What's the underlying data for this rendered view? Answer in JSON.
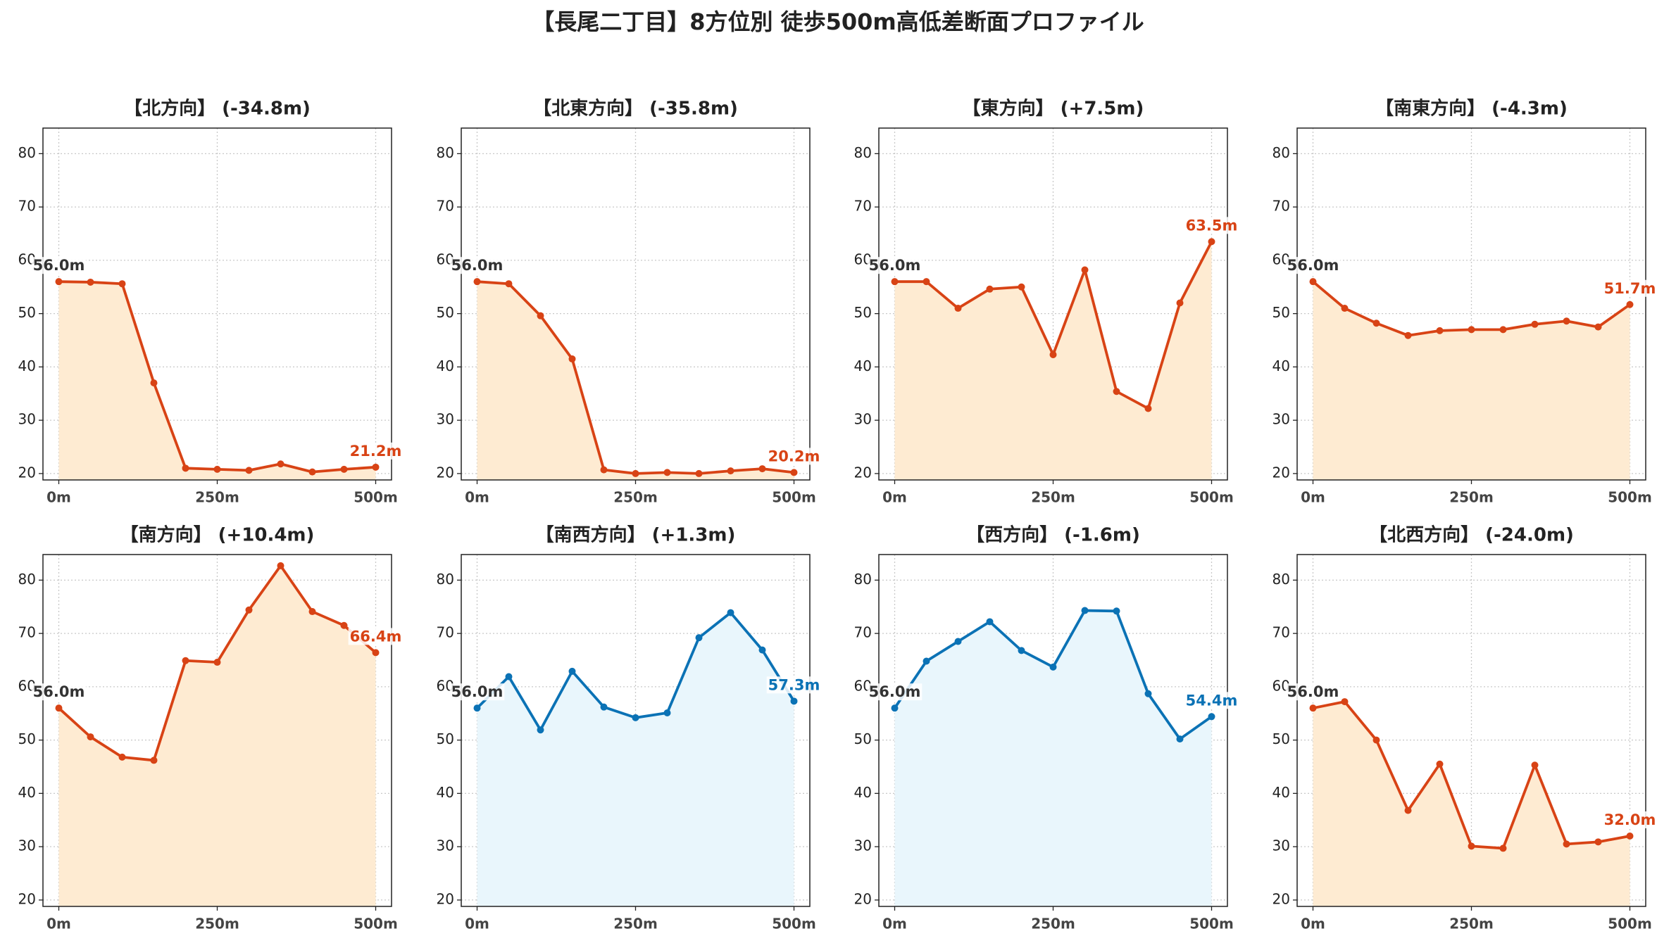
{
  "title": "【長尾二丁目】8方位別 徒歩500m高低差断面プロファイル",
  "chart_data": [
    {
      "type": "line",
      "title": "【北方向】 (-34.8m)",
      "x": [
        0,
        50,
        100,
        150,
        200,
        250,
        300,
        350,
        400,
        450,
        500
      ],
      "values": [
        56.0,
        55.9,
        55.6,
        37.0,
        21.0,
        20.8,
        20.6,
        21.8,
        20.3,
        20.8,
        21.2
      ],
      "value_labels": [
        "56.0m",
        null,
        null,
        null,
        null,
        null,
        null,
        null,
        null,
        null,
        "21.2m"
      ],
      "color": "#d84315",
      "fill_color": "#feebd2",
      "xlim": [
        -25,
        525
      ],
      "ylim": [
        18.8,
        84.8
      ],
      "xticks": [
        {
          "value": 0,
          "label": "0m"
        },
        {
          "value": 250,
          "label": "250m"
        },
        {
          "value": 500,
          "label": "500m"
        }
      ],
      "yticks": [
        20,
        30,
        40,
        50,
        60,
        70,
        80
      ],
      "grid": true
    },
    {
      "type": "line",
      "title": "【北東方向】 (-35.8m)",
      "x": [
        0,
        50,
        100,
        150,
        200,
        250,
        300,
        350,
        400,
        450,
        500
      ],
      "values": [
        56.0,
        55.6,
        49.6,
        41.5,
        20.7,
        20.0,
        20.2,
        20.0,
        20.5,
        20.9,
        20.2
      ],
      "value_labels": [
        "56.0m",
        null,
        null,
        null,
        null,
        null,
        null,
        null,
        null,
        null,
        "20.2m"
      ],
      "color": "#d84315",
      "fill_color": "#feebd2",
      "xlim": [
        -25,
        525
      ],
      "ylim": [
        18.8,
        84.8
      ],
      "xticks": [
        {
          "value": 0,
          "label": "0m"
        },
        {
          "value": 250,
          "label": "250m"
        },
        {
          "value": 500,
          "label": "500m"
        }
      ],
      "yticks": [
        20,
        30,
        40,
        50,
        60,
        70,
        80
      ],
      "grid": true
    },
    {
      "type": "line",
      "title": "【東方向】 (+7.5m)",
      "x": [
        0,
        50,
        100,
        150,
        200,
        250,
        300,
        350,
        400,
        450,
        500
      ],
      "values": [
        56.0,
        56.0,
        51.0,
        54.6,
        55.0,
        42.3,
        58.2,
        35.4,
        32.2,
        52.0,
        63.5
      ],
      "value_labels": [
        "56.0m",
        null,
        null,
        null,
        null,
        null,
        null,
        null,
        null,
        null,
        "63.5m"
      ],
      "color": "#d84315",
      "fill_color": "#feebd2",
      "xlim": [
        -25,
        525
      ],
      "ylim": [
        18.8,
        84.8
      ],
      "xticks": [
        {
          "value": 0,
          "label": "0m"
        },
        {
          "value": 250,
          "label": "250m"
        },
        {
          "value": 500,
          "label": "500m"
        }
      ],
      "yticks": [
        20,
        30,
        40,
        50,
        60,
        70,
        80
      ],
      "grid": true
    },
    {
      "type": "line",
      "title": "【南東方向】 (-4.3m)",
      "x": [
        0,
        50,
        100,
        150,
        200,
        250,
        300,
        350,
        400,
        450,
        500
      ],
      "values": [
        56.0,
        51.0,
        48.2,
        45.9,
        46.8,
        47.0,
        47.0,
        48.0,
        48.6,
        47.5,
        51.7
      ],
      "value_labels": [
        "56.0m",
        null,
        null,
        null,
        null,
        null,
        null,
        null,
        null,
        null,
        "51.7m"
      ],
      "color": "#d84315",
      "fill_color": "#feebd2",
      "xlim": [
        -25,
        525
      ],
      "ylim": [
        18.8,
        84.8
      ],
      "xticks": [
        {
          "value": 0,
          "label": "0m"
        },
        {
          "value": 250,
          "label": "250m"
        },
        {
          "value": 500,
          "label": "500m"
        }
      ],
      "yticks": [
        20,
        30,
        40,
        50,
        60,
        70,
        80
      ],
      "grid": true
    },
    {
      "type": "line",
      "title": "【南方向】 (+10.4m)",
      "x": [
        0,
        50,
        100,
        150,
        200,
        250,
        300,
        350,
        400,
        450,
        500
      ],
      "values": [
        56.0,
        50.6,
        46.8,
        46.2,
        64.9,
        64.6,
        74.4,
        82.7,
        74.1,
        71.5,
        66.4
      ],
      "value_labels": [
        "56.0m",
        null,
        null,
        null,
        null,
        null,
        null,
        null,
        null,
        null,
        "66.4m"
      ],
      "color": "#d84315",
      "fill_color": "#feebd2",
      "xlim": [
        -25,
        525
      ],
      "ylim": [
        18.8,
        84.8
      ],
      "xticks": [
        {
          "value": 0,
          "label": "0m"
        },
        {
          "value": 250,
          "label": "250m"
        },
        {
          "value": 500,
          "label": "500m"
        }
      ],
      "yticks": [
        20,
        30,
        40,
        50,
        60,
        70,
        80
      ],
      "grid": true
    },
    {
      "type": "line",
      "title": "【南西方向】 (+1.3m)",
      "x": [
        0,
        50,
        100,
        150,
        200,
        250,
        300,
        350,
        400,
        450,
        500
      ],
      "values": [
        56.0,
        61.9,
        51.9,
        62.9,
        56.2,
        54.2,
        55.1,
        69.2,
        73.9,
        66.9,
        57.3
      ],
      "value_labels": [
        "56.0m",
        null,
        null,
        null,
        null,
        null,
        null,
        null,
        null,
        null,
        "57.3m"
      ],
      "color": "#0b72b5",
      "fill_color": "#e9f6fc",
      "xlim": [
        -25,
        525
      ],
      "ylim": [
        18.8,
        84.8
      ],
      "xticks": [
        {
          "value": 0,
          "label": "0m"
        },
        {
          "value": 250,
          "label": "250m"
        },
        {
          "value": 500,
          "label": "500m"
        }
      ],
      "yticks": [
        20,
        30,
        40,
        50,
        60,
        70,
        80
      ],
      "grid": true
    },
    {
      "type": "line",
      "title": "【西方向】 (-1.6m)",
      "x": [
        0,
        50,
        100,
        150,
        200,
        250,
        300,
        350,
        400,
        450,
        500
      ],
      "values": [
        56.0,
        64.8,
        68.5,
        72.2,
        66.8,
        63.7,
        74.3,
        74.2,
        58.7,
        50.2,
        54.4
      ],
      "value_labels": [
        "56.0m",
        null,
        null,
        null,
        null,
        null,
        null,
        null,
        null,
        null,
        "54.4m"
      ],
      "color": "#0b72b5",
      "fill_color": "#e9f6fc",
      "xlim": [
        -25,
        525
      ],
      "ylim": [
        18.8,
        84.8
      ],
      "xticks": [
        {
          "value": 0,
          "label": "0m"
        },
        {
          "value": 250,
          "label": "250m"
        },
        {
          "value": 500,
          "label": "500m"
        }
      ],
      "yticks": [
        20,
        30,
        40,
        50,
        60,
        70,
        80
      ],
      "grid": true
    },
    {
      "type": "line",
      "title": "【北西方向】 (-24.0m)",
      "x": [
        0,
        50,
        100,
        150,
        200,
        250,
        300,
        350,
        400,
        450,
        500
      ],
      "values": [
        56.0,
        57.2,
        50.0,
        36.8,
        45.5,
        30.1,
        29.7,
        45.3,
        30.5,
        30.9,
        32.0
      ],
      "value_labels": [
        "56.0m",
        null,
        null,
        null,
        null,
        null,
        null,
        null,
        null,
        null,
        "32.0m"
      ],
      "color": "#d84315",
      "fill_color": "#feebd2",
      "xlim": [
        -25,
        525
      ],
      "ylim": [
        18.8,
        84.8
      ],
      "xticks": [
        {
          "value": 0,
          "label": "0m"
        },
        {
          "value": 250,
          "label": "250m"
        },
        {
          "value": 500,
          "label": "500m"
        }
      ],
      "yticks": [
        20,
        30,
        40,
        50,
        60,
        70,
        80
      ],
      "grid": true
    }
  ]
}
